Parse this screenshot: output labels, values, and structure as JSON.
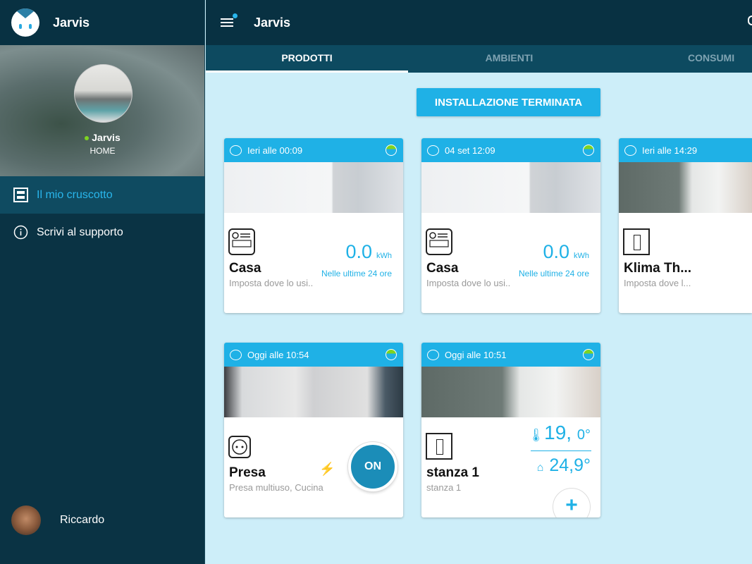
{
  "app": {
    "title": "Jarvis"
  },
  "sidebar": {
    "home_name": "Jarvis",
    "home_type": "HOME",
    "items": [
      {
        "label": "Il mio cruscotto",
        "icon": "dashboard-icon",
        "active": true
      },
      {
        "label": "Scrivi al supporto",
        "icon": "info-icon"
      }
    ],
    "user": "Riccardo"
  },
  "header": {
    "title": "Jarvis"
  },
  "tabs": [
    {
      "label": "PRODOTTI",
      "active": true
    },
    {
      "label": "AMBIENTI"
    },
    {
      "label": "CONSUMI"
    }
  ],
  "main": {
    "install_button": "INSTALLAZIONE TERMINATA",
    "cards": [
      {
        "time": "Ieri alle 00:09",
        "name": "Casa",
        "subtitle": "Imposta dove lo usi..",
        "value": "0.0",
        "unit": "kWh",
        "value_caption": "Nelle ultime 24 ore"
      },
      {
        "time": "04 set 12:09",
        "name": "Casa",
        "subtitle": "Imposta dove lo usi..",
        "value": "0.0",
        "unit": "kWh",
        "value_caption": "Nelle ultime 24 ore"
      },
      {
        "time": "Ieri alle 14:29",
        "name": "Klima Th...",
        "subtitle": "Imposta dove l..."
      },
      {
        "time": "Oggi alle 10:54",
        "name": "Presa",
        "subtitle": "Presa multiuso, Cucina",
        "toggle": "ON",
        "bolt": "⚡"
      },
      {
        "time": "Oggi alle 10:51",
        "name": "stanza 1",
        "subtitle": "stanza 1",
        "setpoint": "19,",
        "setpoint_dec": "0°",
        "ambient": "24,9°",
        "add": "+"
      }
    ]
  },
  "colors": {
    "accent": "#1fb1e6",
    "sidebar": "#0a3344",
    "header": "#083142",
    "tabs": "#0d4a60",
    "background": "#cdeef9",
    "toggle_on": "#1b8db8",
    "online": "#7ed321"
  }
}
